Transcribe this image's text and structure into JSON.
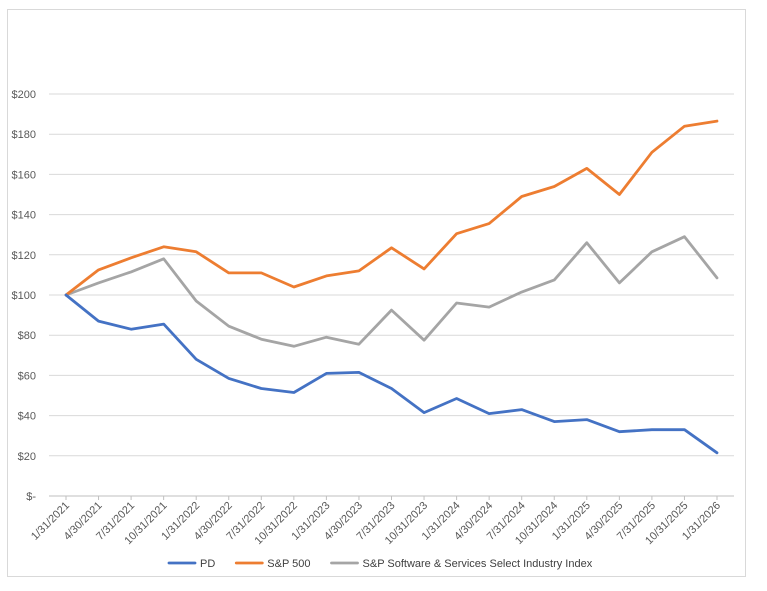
{
  "chart_data": {
    "type": "line",
    "title": "",
    "xlabel": "",
    "ylabel": "",
    "ylim": [
      0,
      200
    ],
    "yticks": [
      0,
      20,
      40,
      60,
      80,
      100,
      120,
      140,
      160,
      180,
      200
    ],
    "ytick_labels": [
      "$-",
      "$20",
      "$40",
      "$60",
      "$80",
      "$100",
      "$120",
      "$140",
      "$160",
      "$180",
      "$200"
    ],
    "grid": true,
    "legend_position": "bottom",
    "categories": [
      "1/31/2021",
      "4/30/2021",
      "7/31/2021",
      "10/31/2021",
      "1/31/2022",
      "4/30/2022",
      "7/31/2022",
      "10/31/2022",
      "1/31/2023",
      "4/30/2023",
      "7/31/2023",
      "10/31/2023",
      "1/31/2024",
      "4/30/2024",
      "7/31/2024",
      "10/31/2024",
      "1/31/2025",
      "4/30/2025",
      "7/31/2025",
      "10/31/2025",
      "1/31/2026"
    ],
    "series": [
      {
        "name": "PD",
        "color": "#4472C4",
        "values": [
          100,
          87,
          83,
          85.5,
          68,
          58.5,
          53.5,
          51.5,
          61,
          61.5,
          53.5,
          41.5,
          48.5,
          41,
          43,
          37,
          38,
          32,
          33,
          33,
          21.5
        ]
      },
      {
        "name": "S&P 500",
        "color": "#ED7D31",
        "values": [
          100,
          112.5,
          118.5,
          124,
          121.5,
          111,
          111,
          104,
          109.5,
          112,
          123.5,
          113,
          130.5,
          135.5,
          149,
          154,
          163,
          150,
          171,
          184,
          186.5
        ]
      },
      {
        "name": "S&P Software & Services Select Industry Index",
        "color": "#A5A5A5",
        "values": [
          100,
          106,
          111.5,
          118,
          97,
          84.5,
          78,
          74.5,
          79,
          75.5,
          92.5,
          77.5,
          96,
          94,
          101.5,
          107.5,
          126,
          106,
          121.5,
          129,
          108.5
        ]
      }
    ]
  }
}
